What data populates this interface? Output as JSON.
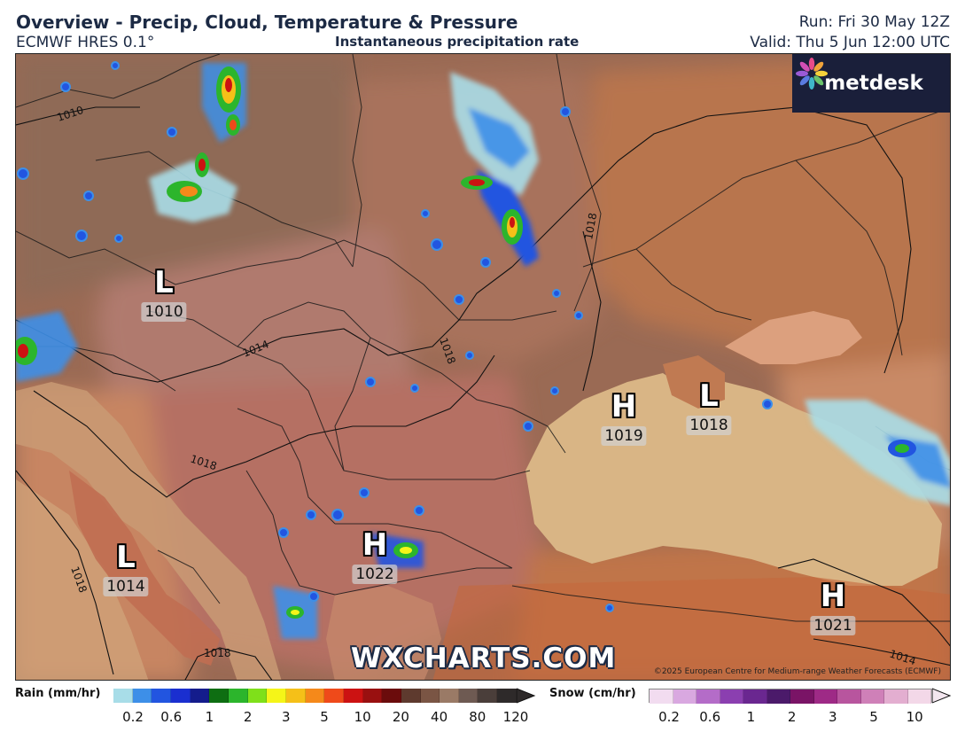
{
  "header": {
    "title": "Overview - Precip, Cloud, Temperature & Pressure",
    "model": "ECMWF HRES 0.1°",
    "product": "Instantaneous precipitation rate",
    "run": "Run: Fri 30 May 12Z",
    "valid": "Valid: Thu 5 Jun 12:00 UTC"
  },
  "logo": {
    "text": "metdesk",
    "icon": "metdesk-flower-icon"
  },
  "watermark": "WXCHARTS.COM",
  "copyright": "©2025 European Centre for Medium-range Weather Forecasts (ECMWF)",
  "pressure_centers": [
    {
      "type": "L",
      "value": "1010"
    },
    {
      "type": "L",
      "value": "1014"
    },
    {
      "type": "H",
      "value": "1022"
    },
    {
      "type": "H",
      "value": "1019"
    },
    {
      "type": "L",
      "value": "1018"
    },
    {
      "type": "H",
      "value": "1021"
    }
  ],
  "isobar_labels": [
    "1010",
    "1014",
    "1018",
    "1018",
    "1018",
    "1018",
    "1018",
    "1014"
  ],
  "legend": {
    "rain": {
      "title": "Rain (mm/hr)",
      "ticks": [
        "0.2",
        "0.6",
        "1",
        "2",
        "3",
        "5",
        "10",
        "20",
        "40",
        "80",
        "120"
      ],
      "colors": [
        "#a8dde8",
        "#3d8fe8",
        "#2255e0",
        "#1a2fd0",
        "#141c8c",
        "#0e6e12",
        "#2cb52c",
        "#7fe01a",
        "#f5f518",
        "#f5c018",
        "#f5891a",
        "#ef4a1a",
        "#cc1212",
        "#991010",
        "#6b0c0c",
        "#5e3a2e",
        "#7a5544",
        "#9a7a66",
        "#6e5a52",
        "#4a3e3a",
        "#2e2a2a"
      ]
    },
    "snow": {
      "title": "Snow (cm/hr)",
      "ticks": [
        "0.2",
        "0.6",
        "1",
        "2",
        "3",
        "5",
        "10"
      ],
      "colors": [
        "#f2dcf0",
        "#d9a8e0",
        "#b46cc8",
        "#8b3fb0",
        "#6a2790",
        "#4b1a6a",
        "#7a1466",
        "#9e2a86",
        "#b8559e",
        "#cf80b8",
        "#e3aed0",
        "#f3d8e8"
      ]
    }
  }
}
